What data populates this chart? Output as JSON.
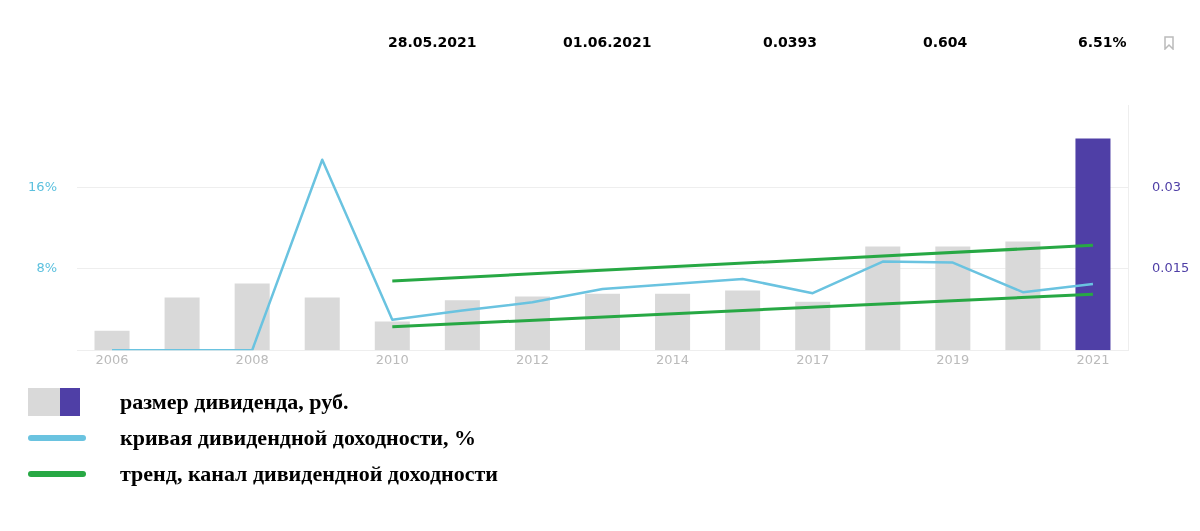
{
  "chart_data": {
    "type": "bar",
    "categories": [
      "2006",
      null,
      "2008",
      null,
      "2010",
      null,
      "2012",
      null,
      "2014",
      null,
      "2017",
      null,
      "2019",
      null,
      "2021"
    ],
    "series": [
      {
        "name": "размер дивиденда, руб.",
        "axis": "y2",
        "colors": [
          "#d9d9d9",
          "#d9d9d9",
          "#d9d9d9",
          "#d9d9d9",
          "#d9d9d9",
          "#d9d9d9",
          "#d9d9d9",
          "#d9d9d9",
          "#d9d9d9",
          "#d9d9d9",
          "#d9d9d9",
          "#d9d9d9",
          "#d9d9d9",
          "#d9d9d9",
          "#4f3fa6"
        ],
        "values": [
          0.0036,
          0.0097,
          0.0123,
          0.0097,
          0.0053,
          0.0092,
          0.0099,
          0.0104,
          0.0104,
          0.011,
          0.0089,
          0.0191,
          0.0191,
          0.02,
          0.039
        ]
      },
      {
        "name": "кривая дивидендной доходности, %",
        "type": "line",
        "color": "#6ac3e0",
        "values": [
          0,
          0,
          0,
          18.7,
          3.0,
          3.9,
          4.7,
          6.0,
          6.5,
          7.0,
          5.6,
          8.7,
          8.6,
          5.7,
          6.5
        ]
      },
      {
        "name": "тренд, канал дивидендной доходности",
        "type": "line",
        "color": "#27a844",
        "values": [
          null,
          null,
          null,
          null,
          6.8,
          null,
          null,
          null,
          null,
          null,
          null,
          null,
          null,
          null,
          10.3
        ]
      },
      {
        "type": "line",
        "color": "#27a844",
        "values": [
          null,
          null,
          null,
          null,
          2.3,
          null,
          null,
          null,
          null,
          null,
          null,
          null,
          null,
          null,
          5.5
        ]
      }
    ],
    "ylim": [
      0,
      24
    ],
    "yticks": [
      {
        "value": 8,
        "label": "8%"
      },
      {
        "value": 16,
        "label": "16%"
      }
    ],
    "y2lim": [
      0,
      0.045
    ],
    "y2ticks": [
      0.015,
      0.03
    ],
    "grid": "y",
    "legend": "bottom left",
    "marker": "none",
    "annotations": [
      "28.05.2021",
      "01.06.2021",
      "0.0393",
      "0.604",
      "6.51%"
    ]
  }
}
